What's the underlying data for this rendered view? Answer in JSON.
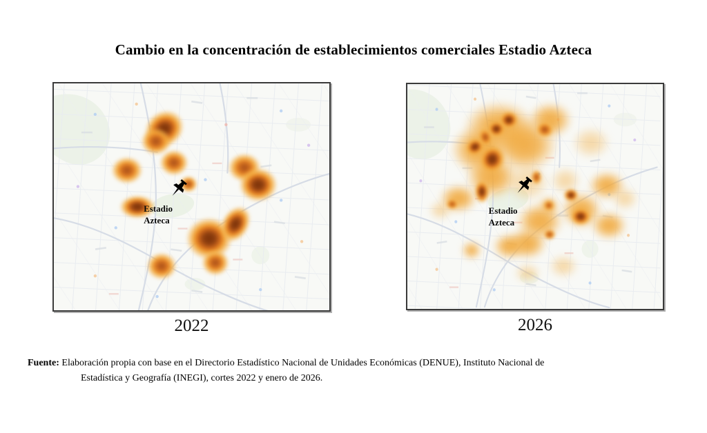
{
  "chart_data": {
    "type": "heatmap",
    "title": "Cambio en la concentración de establecimientos comerciales Estadio Azteca",
    "layout": "two side-by-side map panels with kernel-density heat spots over a faint street basemap",
    "blob_format": [
      "x_pct",
      "y_pct",
      "radius_x_px",
      "radius_y_px",
      "rotation_deg",
      "intensity_level_1to4"
    ],
    "intensity_palette": {
      "halo": "#f3b45a",
      "mid": "#ee8c2a",
      "ring": "#e07d20",
      "core": "#7c3208"
    },
    "panels": [
      {
        "year": "2022",
        "marker": {
          "name": "Estadio Azteca",
          "line1": "Estadio",
          "line2": "Azteca"
        },
        "blobs": [
          [
            40.0,
            20.0,
            30,
            26,
            -35,
            4
          ],
          [
            37.0,
            25.5,
            22,
            20,
            0,
            3
          ],
          [
            43.5,
            35.0,
            21,
            19,
            0,
            3
          ],
          [
            48.8,
            44.5,
            13,
            12,
            0,
            3
          ],
          [
            26.6,
            38.4,
            23,
            20,
            0,
            3
          ],
          [
            30.3,
            54.4,
            26,
            17,
            0,
            4
          ],
          [
            69.2,
            37.0,
            24,
            21,
            0,
            3
          ],
          [
            74.2,
            44.6,
            28,
            25,
            0,
            4
          ],
          [
            56.3,
            68.5,
            34,
            31,
            0,
            4
          ],
          [
            66.0,
            62.0,
            20,
            28,
            30,
            4
          ],
          [
            58.6,
            79.0,
            20,
            19,
            0,
            3
          ],
          [
            39.0,
            80.5,
            22,
            20,
            0,
            3
          ]
        ]
      },
      {
        "year": "2026",
        "marker": {
          "name": "Estadio Azteca",
          "line1": "Estadio",
          "line2": "Azteca"
        },
        "blobs": [
          [
            36,
            19,
            52,
            38,
            0,
            2
          ],
          [
            28,
            29,
            42,
            36,
            0,
            2
          ],
          [
            46,
            27,
            48,
            40,
            0,
            2
          ],
          [
            56,
            16,
            32,
            26,
            0,
            2
          ],
          [
            33,
            41,
            38,
            33,
            0,
            2
          ],
          [
            47,
            44,
            32,
            28,
            0,
            1
          ],
          [
            20,
            51,
            28,
            21,
            0,
            2
          ],
          [
            13,
            56,
            17,
            14,
            0,
            1
          ],
          [
            52,
            61,
            34,
            27,
            0,
            2
          ],
          [
            47,
            71,
            28,
            23,
            0,
            2
          ],
          [
            40,
            72,
            24,
            19,
            0,
            2
          ],
          [
            47,
            84,
            19,
            14,
            0,
            1
          ],
          [
            61,
            81,
            21,
            17,
            0,
            1
          ],
          [
            68,
            56,
            30,
            27,
            0,
            2
          ],
          [
            78,
            45,
            27,
            21,
            0,
            2
          ],
          [
            85,
            51,
            19,
            17,
            0,
            1
          ],
          [
            79,
            63,
            26,
            21,
            0,
            2
          ],
          [
            62,
            43,
            22,
            20,
            0,
            1
          ],
          [
            72,
            26,
            28,
            23,
            0,
            1
          ],
          [
            25,
            74,
            14,
            13,
            0,
            2
          ],
          [
            55.5,
            54,
            14,
            13,
            0,
            2
          ],
          [
            39.8,
            16.1,
            14,
            13,
            0,
            4
          ],
          [
            34.8,
            20.0,
            13,
            12,
            0,
            4
          ],
          [
            53.8,
            20.3,
            13,
            12,
            0,
            3
          ],
          [
            26.4,
            27.8,
            14,
            12,
            -30,
            4
          ],
          [
            33.2,
            33.3,
            19,
            21,
            20,
            4
          ],
          [
            30.5,
            23.5,
            10,
            13,
            -15,
            3
          ],
          [
            29.1,
            48.0,
            11,
            17,
            0,
            4
          ],
          [
            17.5,
            53.5,
            9,
            8,
            0,
            3
          ],
          [
            50.5,
            41.5,
            8,
            11,
            0,
            3
          ],
          [
            55.5,
            54.0,
            8,
            8,
            0,
            3
          ],
          [
            64.0,
            49.5,
            11,
            10,
            0,
            4
          ],
          [
            67.8,
            58.8,
            15,
            13,
            0,
            4
          ],
          [
            55.8,
            67.0,
            9,
            8,
            0,
            3
          ]
        ]
      }
    ]
  },
  "source": {
    "label": "Fuente:",
    "line1": "Elaboración propia con base en el Directorio Estadístico Nacional de Unidades Económicas (DENUE), Instituto Nacional de",
    "line2": "Estadística y Geografía (INEGI), cortes 2022 y enero de 2026."
  }
}
